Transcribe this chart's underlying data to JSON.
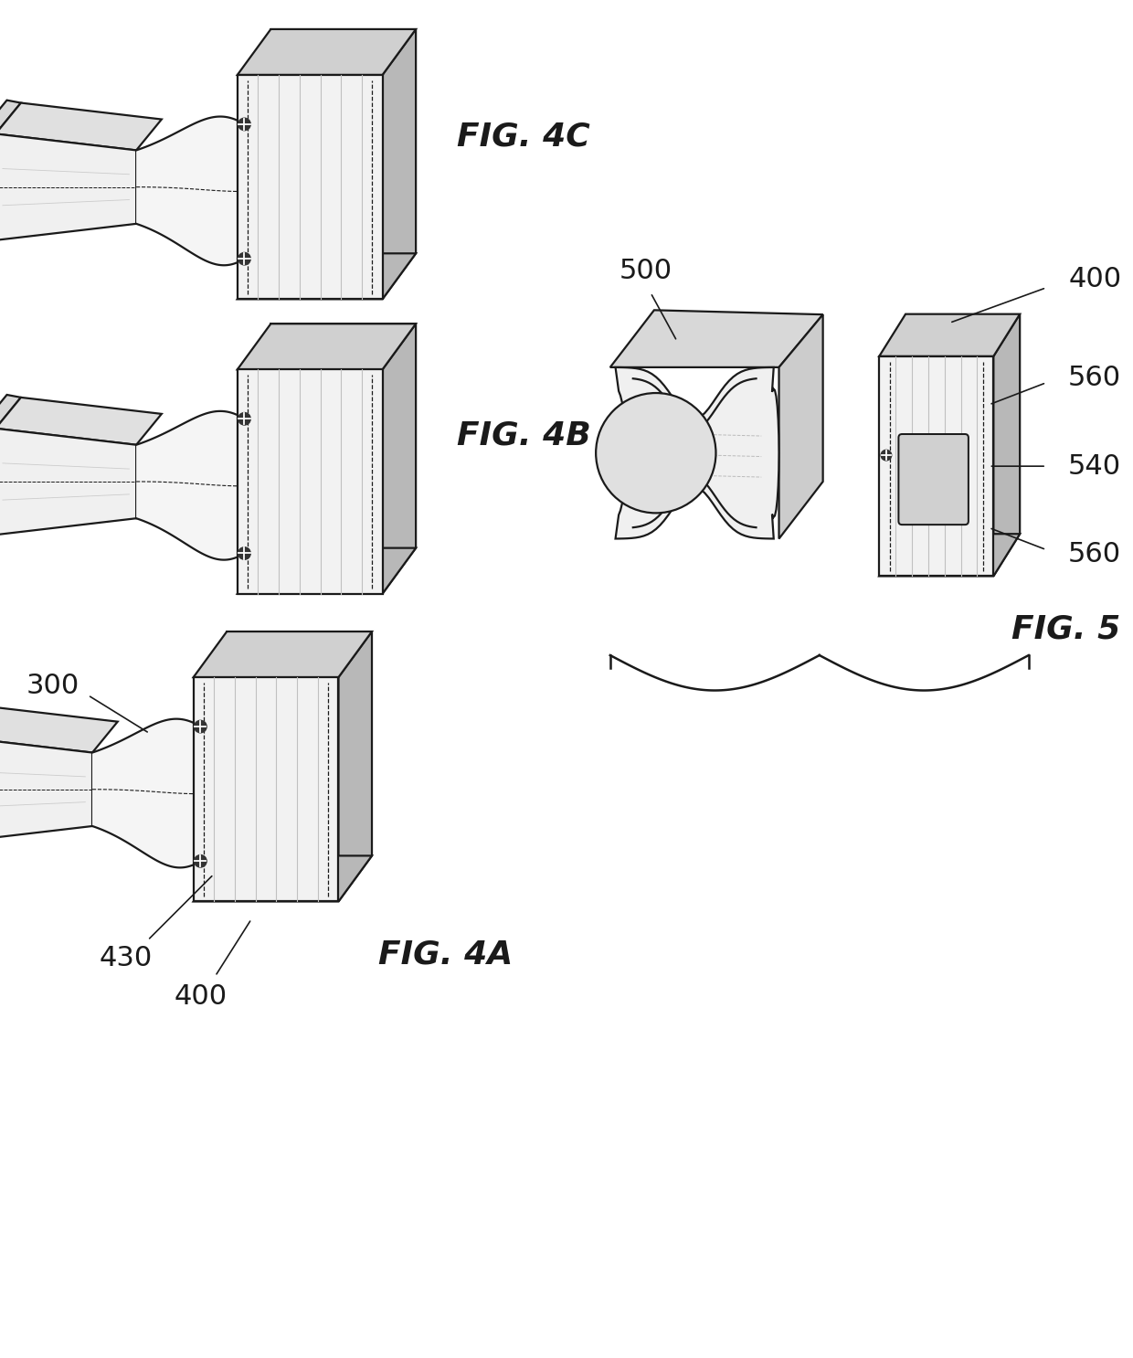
{
  "background_color": "#ffffff",
  "line_color": "#1a1a1a",
  "fig4c_label": "FIG. 4C",
  "fig4b_label": "FIG. 4B",
  "fig4a_label": "FIG. 4A",
  "fig5_label": "FIG. 5",
  "label_300": "300",
  "label_400": "400",
  "label_430": "430",
  "label_500": "500",
  "label_400b": "400",
  "label_540": "540",
  "label_560a": "560",
  "label_560b": "560",
  "font_size_ref": 22,
  "font_size_fig": 26,
  "lw": 1.6,
  "panel_face": "#f2f2f2",
  "panel_top": "#d0d0d0",
  "panel_side": "#b8b8b8",
  "panel_hatch": "#c0c0c0",
  "arm_face": "#f5f5f5",
  "funnel_face": "#f0f0f0",
  "funnel_side": "#d8d8d8",
  "funnel_top": "#e0e0e0",
  "funnel_dark": "#b0b0b0"
}
